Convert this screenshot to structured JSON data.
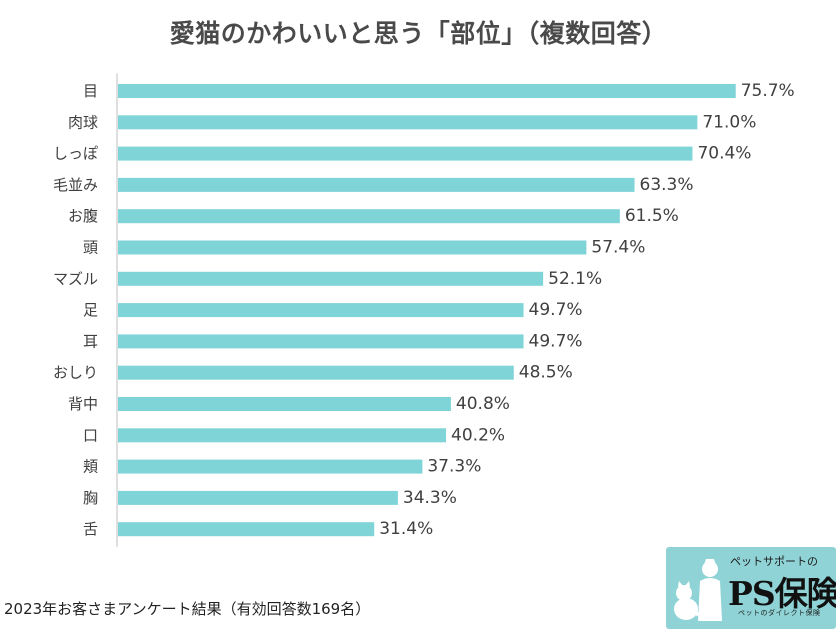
{
  "title": "愛猫のかわいいと思う「部位」（複数回答）",
  "footnote": "2023年お客さまアンケート結果（有効回答数169名）",
  "logo": {
    "tagline": "ペットサポートの",
    "main": "PS保険",
    "sub": "ペットのダイレクト保険"
  },
  "colors": {
    "bar": "#7fd4d8",
    "axis": "#bfbfbf",
    "text": "#404040"
  },
  "chart_data": {
    "type": "bar",
    "orientation": "horizontal",
    "title": "愛猫のかわいいと思う「部位」（複数回答）",
    "categories": [
      "目",
      "肉球",
      "しっぽ",
      "毛並み",
      "お腹",
      "頭",
      "マズル",
      "足",
      "耳",
      "おしり",
      "背中",
      "口",
      "頬",
      "胸",
      "舌"
    ],
    "values": [
      75.7,
      71.0,
      70.4,
      63.3,
      61.5,
      57.4,
      52.1,
      49.7,
      49.7,
      48.5,
      40.8,
      40.2,
      37.3,
      34.3,
      31.4
    ],
    "labels": [
      "75.7%",
      "71.0%",
      "70.4%",
      "63.3%",
      "61.5%",
      "57.4%",
      "52.1%",
      "49.7%",
      "49.7%",
      "48.5%",
      "40.8%",
      "40.2%",
      "37.3%",
      "34.3%",
      "31.4%"
    ],
    "unit": "%",
    "xlim": [
      0,
      100
    ],
    "grid": false,
    "xlabel": "",
    "ylabel": ""
  }
}
